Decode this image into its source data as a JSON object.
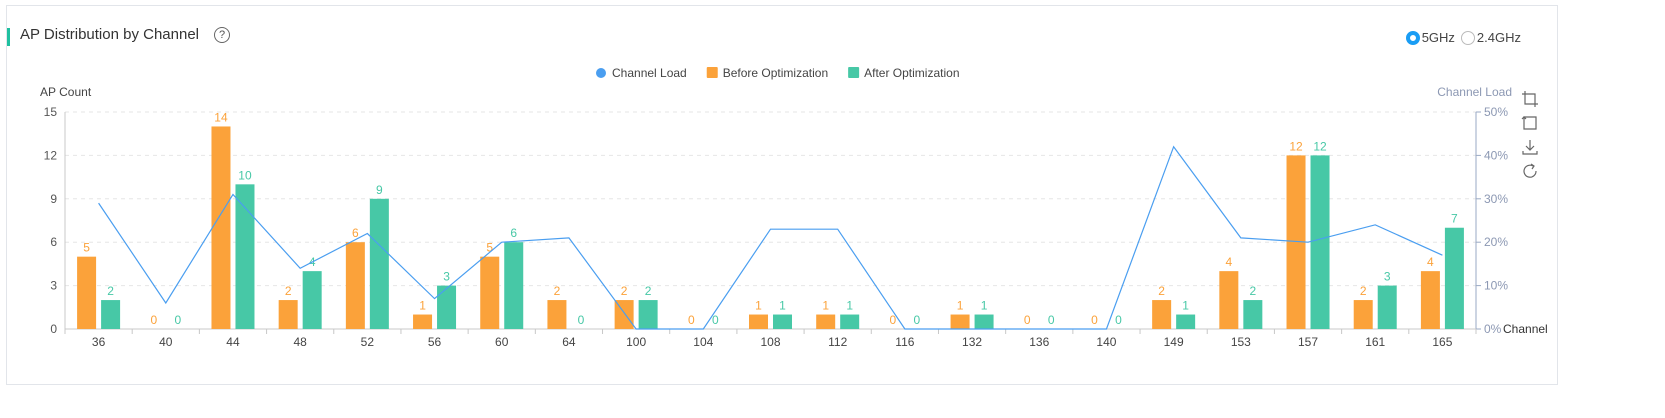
{
  "header": {
    "title": "AP Distribution by Channel",
    "help_glyph": "?"
  },
  "band": {
    "options": [
      "5GHz",
      "2.4GHz"
    ],
    "selected": "5GHz"
  },
  "toolbox": [
    "zoom-icon",
    "zoom-reset-icon",
    "download-icon",
    "refresh-icon"
  ],
  "chart_data": {
    "type": "bar",
    "categories": [
      "36",
      "40",
      "44",
      "48",
      "52",
      "56",
      "60",
      "64",
      "100",
      "104",
      "108",
      "112",
      "116",
      "132",
      "136",
      "140",
      "149",
      "153",
      "157",
      "161",
      "165"
    ],
    "series": [
      {
        "name": "Before Optimization",
        "type": "bar",
        "color": "#fba23a",
        "values": [
          5,
          0,
          14,
          2,
          6,
          1,
          5,
          2,
          2,
          0,
          1,
          1,
          0,
          1,
          0,
          0,
          2,
          4,
          12,
          2,
          4
        ]
      },
      {
        "name": "After Optimization",
        "type": "bar",
        "color": "#47c8a6",
        "values": [
          2,
          0,
          10,
          4,
          9,
          3,
          6,
          0,
          2,
          0,
          1,
          1,
          0,
          1,
          0,
          0,
          1,
          2,
          12,
          3,
          7
        ]
      },
      {
        "name": "Channel Load",
        "type": "line",
        "color": "#4a9ef0",
        "axis": "right",
        "values": [
          29,
          6,
          31,
          14,
          22,
          7,
          20,
          21,
          0,
          0,
          23,
          23,
          0,
          0,
          0,
          0,
          42,
          21,
          20,
          24,
          17
        ]
      }
    ],
    "ylabel": "AP Count",
    "ylabel_right": "Channel Load",
    "xlabel": "Channel",
    "ylim": [
      0,
      15
    ],
    "yticks": [
      0,
      3,
      6,
      9,
      12,
      15
    ],
    "ylim_right": [
      0,
      50
    ],
    "yticks_right": [
      "0%",
      "10%",
      "20%",
      "30%",
      "40%",
      "50%"
    ],
    "legend_position": "top-center",
    "grid": true
  }
}
